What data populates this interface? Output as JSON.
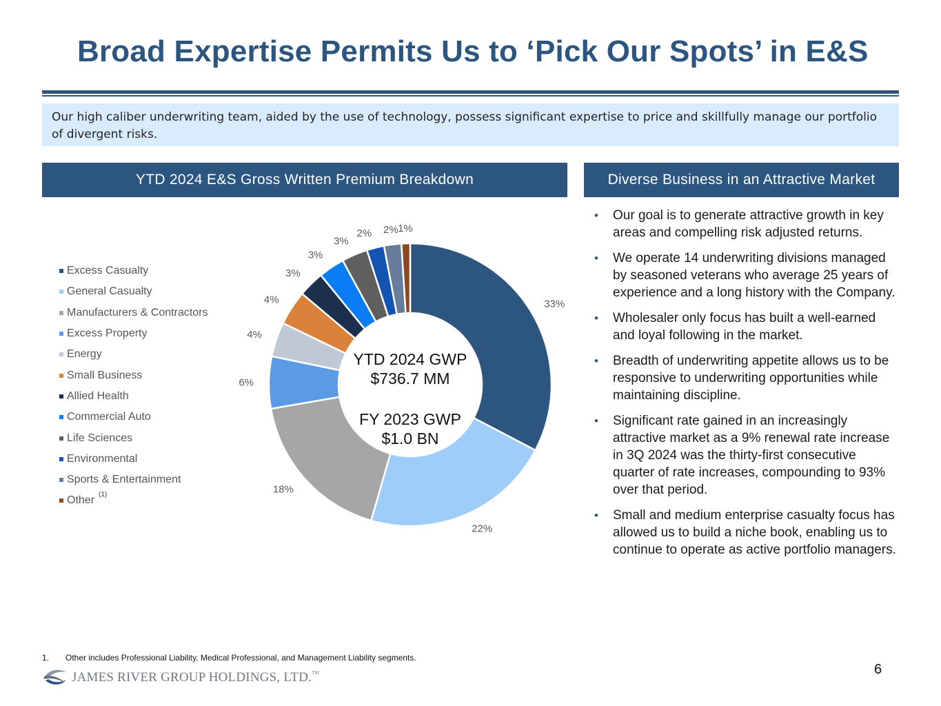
{
  "page": {
    "title": "Broad Expertise Permits Us to ‘Pick Our Spots’ in E&S",
    "intro": "Our high caliber underwriting team, aided by the use of technology, possess significant expertise to price and skillfully manage our portfolio of divergent risks.",
    "left_heading": "YTD 2024 E&S Gross Written Premium Breakdown",
    "right_heading": "Diverse Business in an Attractive Market",
    "footnote_number": "1.",
    "footnote_text": "Other includes Professional Liability, Medical Professional, and Management Liability segments.",
    "page_number": "6",
    "company_name": "JAMES RIVER GROUP HOLDINGS, LTD.",
    "company_tm": "TM"
  },
  "bullets": [
    "Our goal is to generate attractive growth in key areas and compelling risk adjusted returns.",
    "We operate 14 underwriting divisions managed by seasoned veterans who average 25 years of experience and a long history with the Company.",
    "Wholesaler only focus has built a well-earned and loyal following in the market.",
    "Breadth of underwriting appetite allows us to be responsive to underwriting opportunities while maintaining discipline.",
    "Significant rate gained in an increasingly attractive market as a 9% renewal rate increase in 3Q 2024 was the thirty-first consecutive quarter of rate increases, compounding to 93% over that period.",
    "Small and medium enterprise casualty focus has allowed us to build a niche book, enabling us to continue to operate as active portfolio managers."
  ],
  "chart_data": {
    "type": "pie",
    "variant": "donut",
    "legend_position": "left",
    "center_text": [
      "YTD 2024 GWP",
      "$736.7 MM",
      "FY 2023 GWP",
      "$1.0 BN"
    ],
    "series": [
      {
        "name": "Excess Casualty",
        "value": 33,
        "label": "33%",
        "color": "#2c5580"
      },
      {
        "name": "General Casualty",
        "value": 22,
        "label": "22%",
        "color": "#9fcdfa"
      },
      {
        "name": "Manufacturers & Contractors",
        "value": 18,
        "label": "18%",
        "color": "#a6a6a6"
      },
      {
        "name": "Excess Property",
        "value": 6,
        "label": "6%",
        "color": "#5b9be6"
      },
      {
        "name": "Energy",
        "value": 4,
        "label": "4%",
        "color": "#bfc9d6"
      },
      {
        "name": "Small Business",
        "value": 4,
        "label": "4%",
        "color": "#da823a"
      },
      {
        "name": "Allied Health",
        "value": 3,
        "label": "3%",
        "color": "#1c304d"
      },
      {
        "name": "Commercial Auto",
        "value": 3,
        "label": "3%",
        "color": "#0a7df5"
      },
      {
        "name": "Life Sciences",
        "value": 3,
        "label": "3%",
        "color": "#5f5f5f"
      },
      {
        "name": "Environmental",
        "value": 2,
        "label": "2%",
        "color": "#1553b2"
      },
      {
        "name": "Sports & Entertainment",
        "value": 2,
        "label": "2%",
        "color": "#687c9c"
      },
      {
        "name": "Other",
        "value": 1,
        "label": "1%",
        "color": "#8b4a1f",
        "footnote": "(1)"
      }
    ]
  }
}
